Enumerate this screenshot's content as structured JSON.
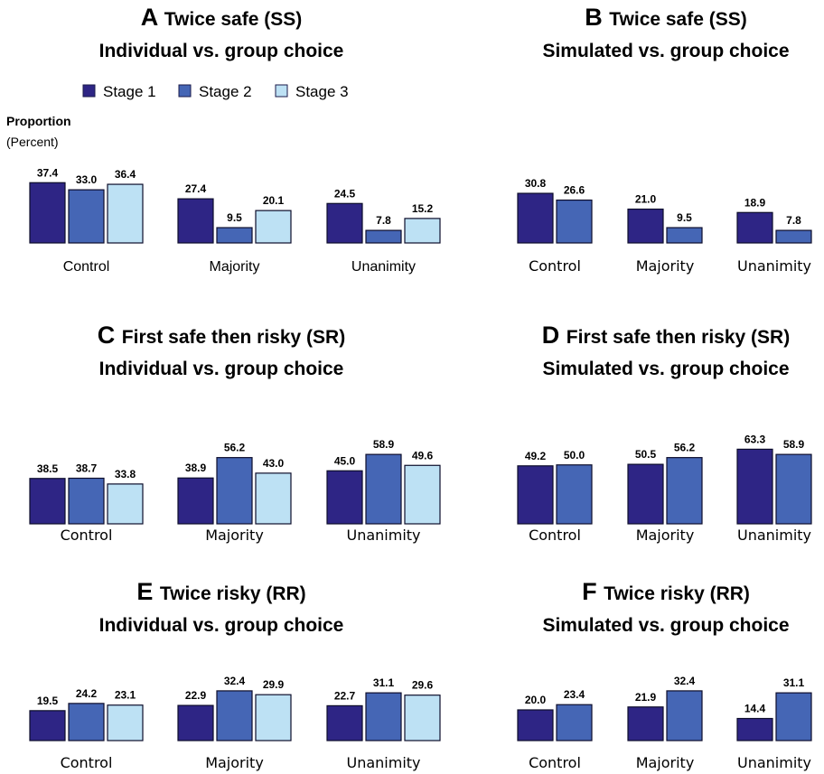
{
  "legend": {
    "items": [
      {
        "label": "Stage 1",
        "color": "#2e2585"
      },
      {
        "label": "Stage 2",
        "color": "#4566b5"
      },
      {
        "label": "Stage 3",
        "color": "#bde1f4"
      }
    ]
  },
  "yaxis": {
    "title": "Proportion",
    "subtitle": "(Percent)"
  },
  "chart_data": [
    {
      "type": "bar",
      "letter": "A",
      "title": "Twice safe (SS)",
      "subtitle": "Individual vs. group choice",
      "categories": [
        "Control",
        "Majority",
        "Unanimity"
      ],
      "series": [
        {
          "name": "Stage 1",
          "color": "#2e2585",
          "values": [
            37.4,
            27.4,
            24.5
          ]
        },
        {
          "name": "Stage 2",
          "color": "#4566b5",
          "values": [
            33.0,
            9.5,
            7.8
          ]
        },
        {
          "name": "Stage 3",
          "color": "#bde1f4",
          "values": [
            36.4,
            20.1,
            15.2
          ]
        }
      ]
    },
    {
      "type": "bar",
      "letter": "B",
      "title": "Twice safe (SS)",
      "subtitle": "Simulated vs. group choice",
      "categories": [
        "Control",
        "Majority",
        "Unanimity"
      ],
      "series": [
        {
          "name": "Stage 1",
          "color": "#2e2585",
          "values": [
            30.8,
            21.0,
            18.9
          ]
        },
        {
          "name": "Stage 2",
          "color": "#4566b5",
          "values": [
            26.6,
            9.5,
            7.8
          ]
        }
      ]
    },
    {
      "type": "bar",
      "letter": "C",
      "title": "First safe then risky (SR)",
      "subtitle": "Individual vs. group choice",
      "categories": [
        "Control",
        "Majority",
        "Unanimity"
      ],
      "series": [
        {
          "name": "Stage 1",
          "color": "#2e2585",
          "values": [
            38.5,
            38.9,
            45.0
          ]
        },
        {
          "name": "Stage 2",
          "color": "#4566b5",
          "values": [
            38.7,
            56.2,
            58.9
          ]
        },
        {
          "name": "Stage 3",
          "color": "#bde1f4",
          "values": [
            33.8,
            43.0,
            49.6
          ]
        }
      ]
    },
    {
      "type": "bar",
      "letter": "D",
      "title": "First safe then risky (SR)",
      "subtitle": "Simulated vs. group choice",
      "categories": [
        "Control",
        "Majority",
        "Unanimity"
      ],
      "series": [
        {
          "name": "Stage 1",
          "color": "#2e2585",
          "values": [
            49.2,
            50.5,
            63.3
          ]
        },
        {
          "name": "Stage 2",
          "color": "#4566b5",
          "values": [
            50.0,
            56.2,
            58.9
          ]
        }
      ]
    },
    {
      "type": "bar",
      "letter": "E",
      "title": "Twice risky (RR)",
      "subtitle": "Individual vs. group choice",
      "categories": [
        "Control",
        "Majority",
        "Unanimity"
      ],
      "series": [
        {
          "name": "Stage 1",
          "color": "#2e2585",
          "values": [
            19.5,
            22.9,
            22.7
          ]
        },
        {
          "name": "Stage 2",
          "color": "#4566b5",
          "values": [
            24.2,
            32.4,
            31.1
          ]
        },
        {
          "name": "Stage 3",
          "color": "#bde1f4",
          "values": [
            23.1,
            29.9,
            29.6
          ]
        }
      ]
    },
    {
      "type": "bar",
      "letter": "F",
      "title": "Twice risky (RR)",
      "subtitle": "Simulated vs. group choice",
      "categories": [
        "Control",
        "Majority",
        "Unanimity"
      ],
      "series": [
        {
          "name": "Stage 1",
          "color": "#2e2585",
          "values": [
            20.0,
            21.9,
            14.4
          ]
        },
        {
          "name": "Stage 2",
          "color": "#4566b5",
          "values": [
            23.4,
            32.4,
            31.1
          ]
        }
      ]
    }
  ]
}
